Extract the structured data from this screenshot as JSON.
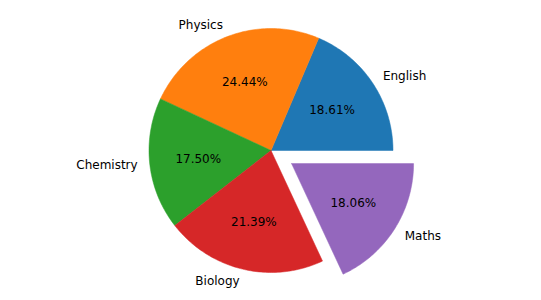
{
  "chart_data": {
    "type": "pie",
    "categories": [
      "English",
      "Physics",
      "Chemistry",
      "Biology",
      "Maths"
    ],
    "values": [
      18.61,
      24.44,
      17.5,
      21.39,
      18.06
    ],
    "value_labels": [
      "18.61%",
      "24.44%",
      "17.50%",
      "21.39%",
      "18.06%"
    ],
    "colors": [
      "#1f77b4",
      "#ff7f0e",
      "#2ca02c",
      "#d62728",
      "#9467bd"
    ],
    "data_labels": true
  }
}
